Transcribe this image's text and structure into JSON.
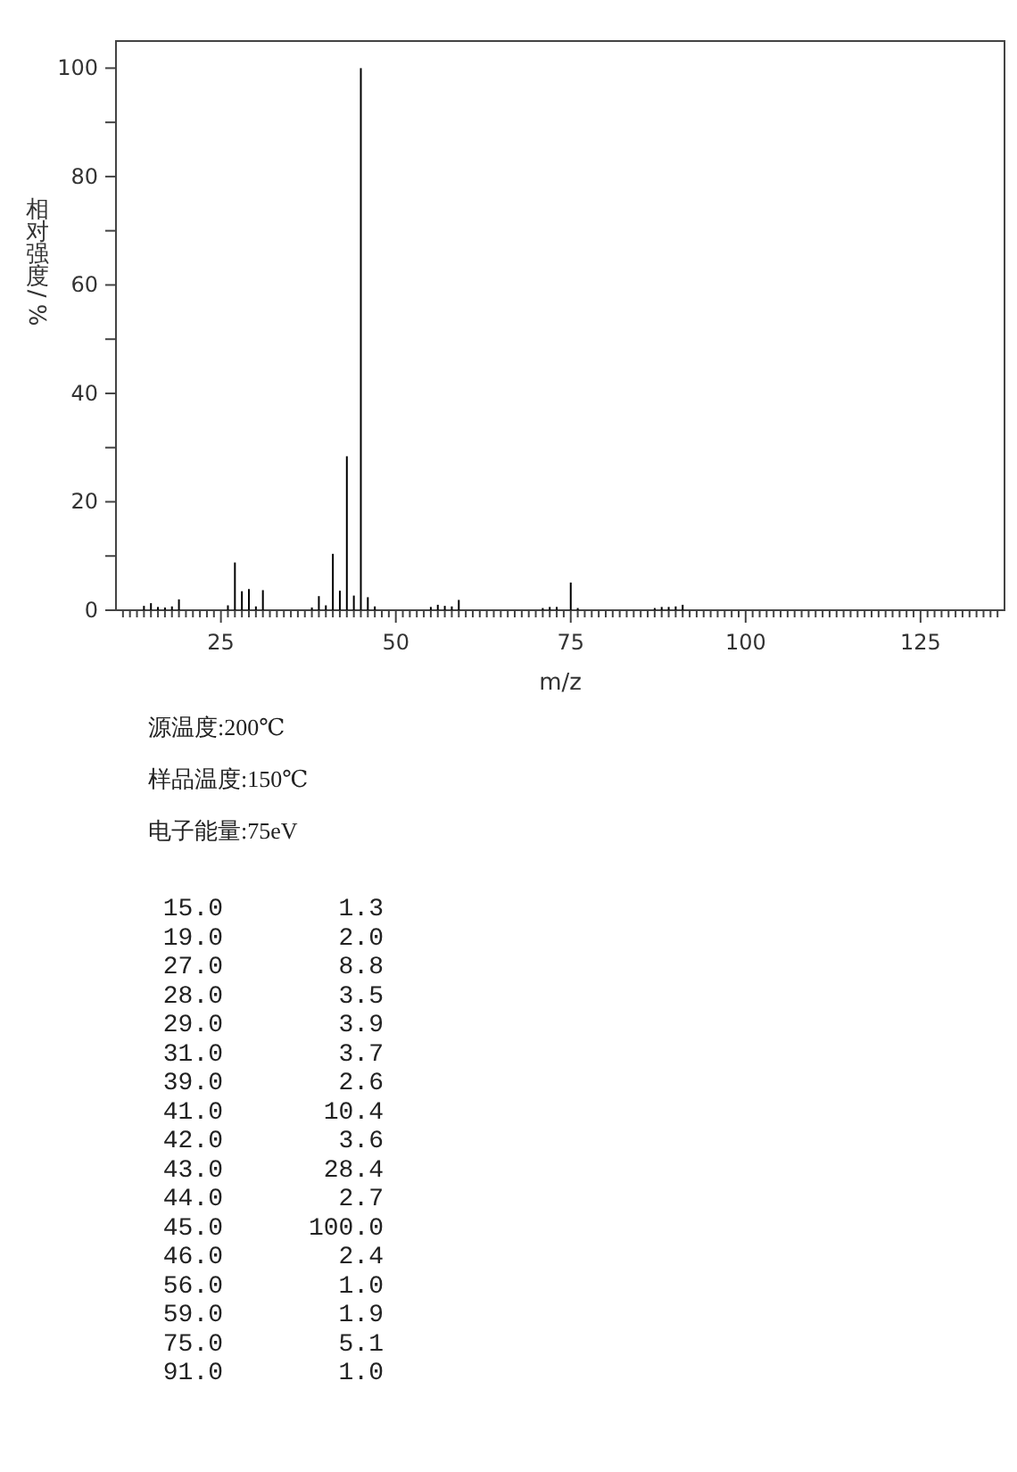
{
  "chart_data": [
    {
      "type": "bar",
      "xlabel": "m/z",
      "ylabel": "相对强度/%",
      "annotations": [
        "源温度:200℃",
        "样品温度:150℃",
        "电子能量:75eV"
      ],
      "x": [
        14,
        15,
        16,
        17,
        18,
        19,
        26,
        27,
        28,
        29,
        30,
        31,
        38,
        39,
        40,
        41,
        42,
        43,
        44,
        45,
        46,
        47,
        55,
        56,
        57,
        58,
        59,
        71,
        72,
        73,
        75,
        76,
        87,
        88,
        89,
        90,
        91
      ],
      "values": [
        0.8,
        1.3,
        0.6,
        0.5,
        0.7,
        2.0,
        0.9,
        8.8,
        3.5,
        3.9,
        0.7,
        3.7,
        0.5,
        2.6,
        0.9,
        10.4,
        3.6,
        28.4,
        2.7,
        100,
        2.4,
        0.7,
        0.6,
        1.0,
        0.8,
        0.7,
        1.9,
        0.4,
        0.6,
        0.6,
        5.1,
        0.4,
        0.4,
        0.6,
        0.6,
        0.7,
        1.0
      ],
      "color": "#000000",
      "xlim": [
        10,
        137
      ],
      "xticks": [
        {
          "value": 11,
          "label": null
        },
        {
          "value": 12,
          "label": null
        },
        {
          "value": 13,
          "label": null
        },
        {
          "value": 14,
          "label": null
        },
        {
          "value": 15,
          "label": null
        },
        {
          "value": 16,
          "label": null
        },
        {
          "value": 17,
          "label": null
        },
        {
          "value": 18,
          "label": null
        },
        {
          "value": 19,
          "label": null
        },
        {
          "value": 20,
          "label": null
        },
        {
          "value": 21,
          "label": null
        },
        {
          "value": 22,
          "label": null
        },
        {
          "value": 23,
          "label": null
        },
        {
          "value": 24,
          "label": null
        },
        25,
        {
          "value": 26,
          "label": null
        },
        {
          "value": 27,
          "label": null
        },
        {
          "value": 28,
          "label": null
        },
        {
          "value": 29,
          "label": null
        },
        {
          "value": 30,
          "label": null
        },
        {
          "value": 31,
          "label": null
        },
        {
          "value": 32,
          "label": null
        },
        {
          "value": 33,
          "label": null
        },
        {
          "value": 34,
          "label": null
        },
        {
          "value": 35,
          "label": null
        },
        {
          "value": 36,
          "label": null
        },
        {
          "value": 37,
          "label": null
        },
        {
          "value": 38,
          "label": null
        },
        {
          "value": 39,
          "label": null
        },
        {
          "value": 40,
          "label": null
        },
        {
          "value": 41,
          "label": null
        },
        {
          "value": 42,
          "label": null
        },
        {
          "value": 43,
          "label": null
        },
        {
          "value": 44,
          "label": null
        },
        {
          "value": 45,
          "label": null
        },
        {
          "value": 46,
          "label": null
        },
        {
          "value": 47,
          "label": null
        },
        {
          "value": 48,
          "label": null
        },
        {
          "value": 49,
          "label": null
        },
        50,
        {
          "value": 51,
          "label": null
        },
        {
          "value": 52,
          "label": null
        },
        {
          "value": 53,
          "label": null
        },
        {
          "value": 54,
          "label": null
        },
        {
          "value": 55,
          "label": null
        },
        {
          "value": 56,
          "label": null
        },
        {
          "value": 57,
          "label": null
        },
        {
          "value": 58,
          "label": null
        },
        {
          "value": 59,
          "label": null
        },
        {
          "value": 60,
          "label": null
        },
        {
          "value": 61,
          "label": null
        },
        {
          "value": 62,
          "label": null
        },
        {
          "value": 63,
          "label": null
        },
        {
          "value": 64,
          "label": null
        },
        {
          "value": 65,
          "label": null
        },
        {
          "value": 66,
          "label": null
        },
        {
          "value": 67,
          "label": null
        },
        {
          "value": 68,
          "label": null
        },
        {
          "value": 69,
          "label": null
        },
        {
          "value": 70,
          "label": null
        },
        {
          "value": 71,
          "label": null
        },
        {
          "value": 72,
          "label": null
        },
        {
          "value": 73,
          "label": null
        },
        {
          "value": 74,
          "label": null
        },
        75,
        {
          "value": 76,
          "label": null
        },
        {
          "value": 77,
          "label": null
        },
        {
          "value": 78,
          "label": null
        },
        {
          "value": 79,
          "label": null
        },
        {
          "value": 80,
          "label": null
        },
        {
          "value": 81,
          "label": null
        },
        {
          "value": 82,
          "label": null
        },
        {
          "value": 83,
          "label": null
        },
        {
          "value": 84,
          "label": null
        },
        {
          "value": 85,
          "label": null
        },
        {
          "value": 86,
          "label": null
        },
        {
          "value": 87,
          "label": null
        },
        {
          "value": 88,
          "label": null
        },
        {
          "value": 89,
          "label": null
        },
        {
          "value": 90,
          "label": null
        },
        {
          "value": 91,
          "label": null
        },
        {
          "value": 92,
          "label": null
        },
        {
          "value": 93,
          "label": null
        },
        {
          "value": 94,
          "label": null
        },
        {
          "value": 95,
          "label": null
        },
        {
          "value": 96,
          "label": null
        },
        {
          "value": 97,
          "label": null
        },
        {
          "value": 98,
          "label": null
        },
        {
          "value": 99,
          "label": null
        },
        100,
        {
          "value": 101,
          "label": null
        },
        {
          "value": 102,
          "label": null
        },
        {
          "value": 103,
          "label": null
        },
        {
          "value": 104,
          "label": null
        },
        {
          "value": 105,
          "label": null
        },
        {
          "value": 106,
          "label": null
        },
        {
          "value": 107,
          "label": null
        },
        {
          "value": 108,
          "label": null
        },
        {
          "value": 109,
          "label": null
        },
        {
          "value": 110,
          "label": null
        },
        {
          "value": 111,
          "label": null
        },
        {
          "value": 112,
          "label": null
        },
        {
          "value": 113,
          "label": null
        },
        {
          "value": 114,
          "label": null
        },
        {
          "value": 115,
          "label": null
        },
        {
          "value": 116,
          "label": null
        },
        {
          "value": 117,
          "label": null
        },
        {
          "value": 118,
          "label": null
        },
        {
          "value": 119,
          "label": null
        },
        {
          "value": 120,
          "label": null
        },
        {
          "value": 121,
          "label": null
        },
        {
          "value": 122,
          "label": null
        },
        {
          "value": 123,
          "label": null
        },
        {
          "value": 124,
          "label": null
        },
        125,
        {
          "value": 126,
          "label": null
        },
        {
          "value": 127,
          "label": null
        },
        {
          "value": 128,
          "label": null
        },
        {
          "value": 129,
          "label": null
        },
        {
          "value": 130,
          "label": null
        },
        {
          "value": 131,
          "label": null
        },
        {
          "value": 132,
          "label": null
        },
        {
          "value": 133,
          "label": null
        },
        {
          "value": 134,
          "label": null
        },
        {
          "value": 135,
          "label": null
        },
        {
          "value": 136,
          "label": null
        }
      ],
      "ylim": [
        0,
        105
      ],
      "yticks": [
        0,
        {
          "value": 10,
          "label": null
        },
        20,
        {
          "value": 30,
          "label": null
        },
        40,
        {
          "value": 50,
          "label": null
        },
        60,
        {
          "value": 70,
          "label": null
        },
        80,
        {
          "value": 90,
          "label": null
        },
        100
      ]
    },
    {
      "type": "other",
      "annotations": [
        "15.0",
        "1.3",
        "19.0",
        "2.0",
        "27.0",
        "8.8",
        "28.0",
        "3.5",
        "29.0",
        "3.9",
        "31.0",
        "3.7",
        "39.0",
        "2.6",
        "41.0",
        "10.4",
        "42.0",
        "3.6",
        "43.0",
        "28.4",
        "44.0",
        "2.7",
        "45.0",
        "100.0",
        "46.0",
        "2.4",
        "56.0",
        "1.0",
        "59.0",
        "1.9",
        "75.0",
        "5.1",
        "91.0",
        "1.0"
      ]
    }
  ]
}
